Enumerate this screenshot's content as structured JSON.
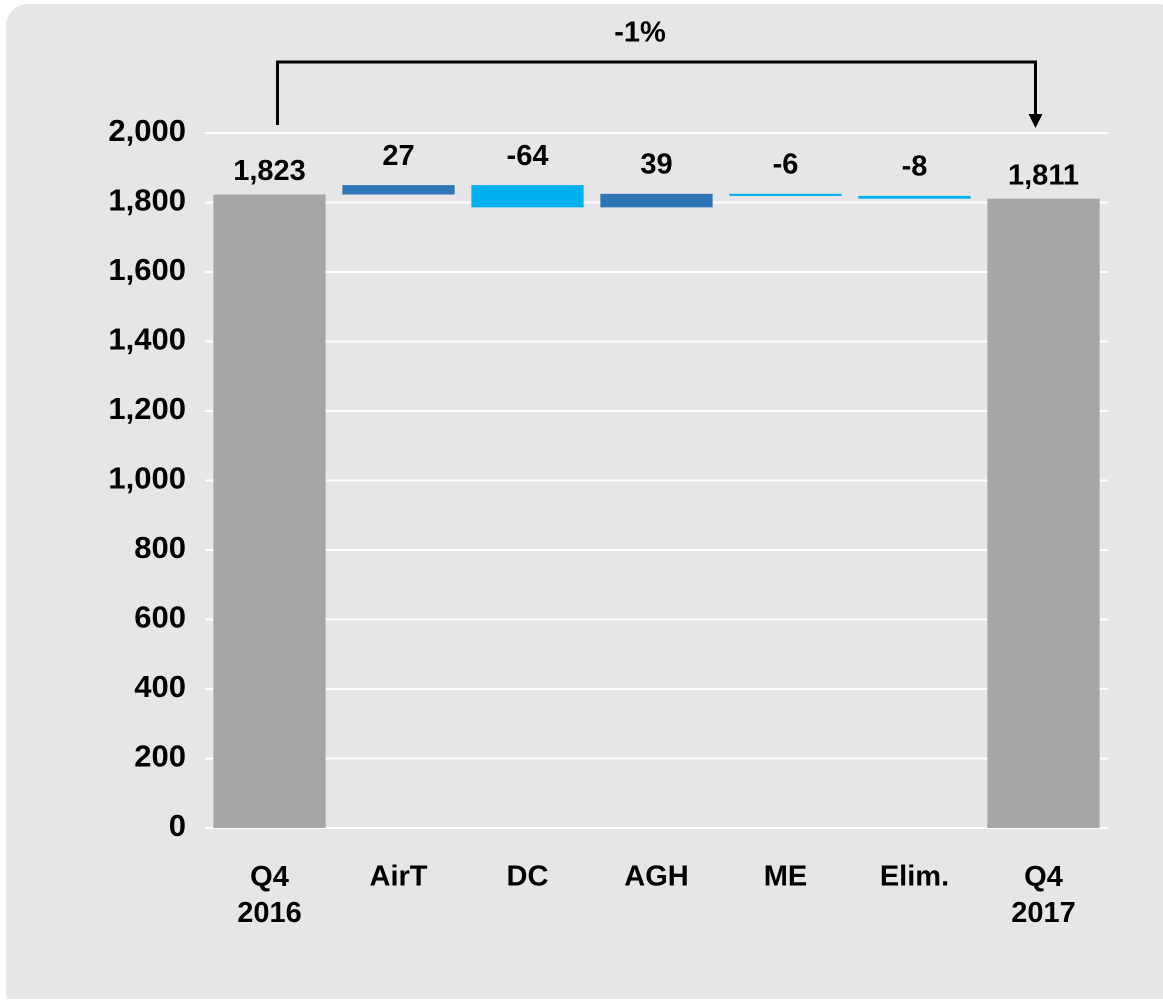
{
  "chart_data": {
    "type": "waterfall",
    "annotation": "-1%",
    "categories": [
      "Q4 2016",
      "AirT",
      "DC",
      "AGH",
      "ME",
      "Elim.",
      "Q4 2017"
    ],
    "values": [
      1823,
      27,
      -64,
      39,
      -6,
      -8,
      1811
    ],
    "value_labels": [
      "1,823",
      "27",
      "-64",
      "39",
      "-6",
      "-8",
      "1,811"
    ],
    "totals": [
      true,
      false,
      false,
      false,
      false,
      false,
      true
    ],
    "colors": [
      "#a6a6a6",
      "#2e75b6",
      "#00b0f0",
      "#2e75b6",
      "#00b0f0",
      "#00b0f0",
      "#a6a6a6"
    ],
    "ylim": [
      0,
      2000
    ],
    "yticks": [
      0,
      200,
      400,
      600,
      800,
      {
        "value": 1000,
        "label": "1,000"
      },
      {
        "value": 1200,
        "label": "1,200"
      },
      {
        "value": 1400,
        "label": "1,400"
      },
      {
        "value": 1600,
        "label": "1,600"
      },
      {
        "value": 1800,
        "label": "1,800"
      },
      {
        "value": 2000,
        "label": "2,000"
      }
    ],
    "grid": true
  }
}
